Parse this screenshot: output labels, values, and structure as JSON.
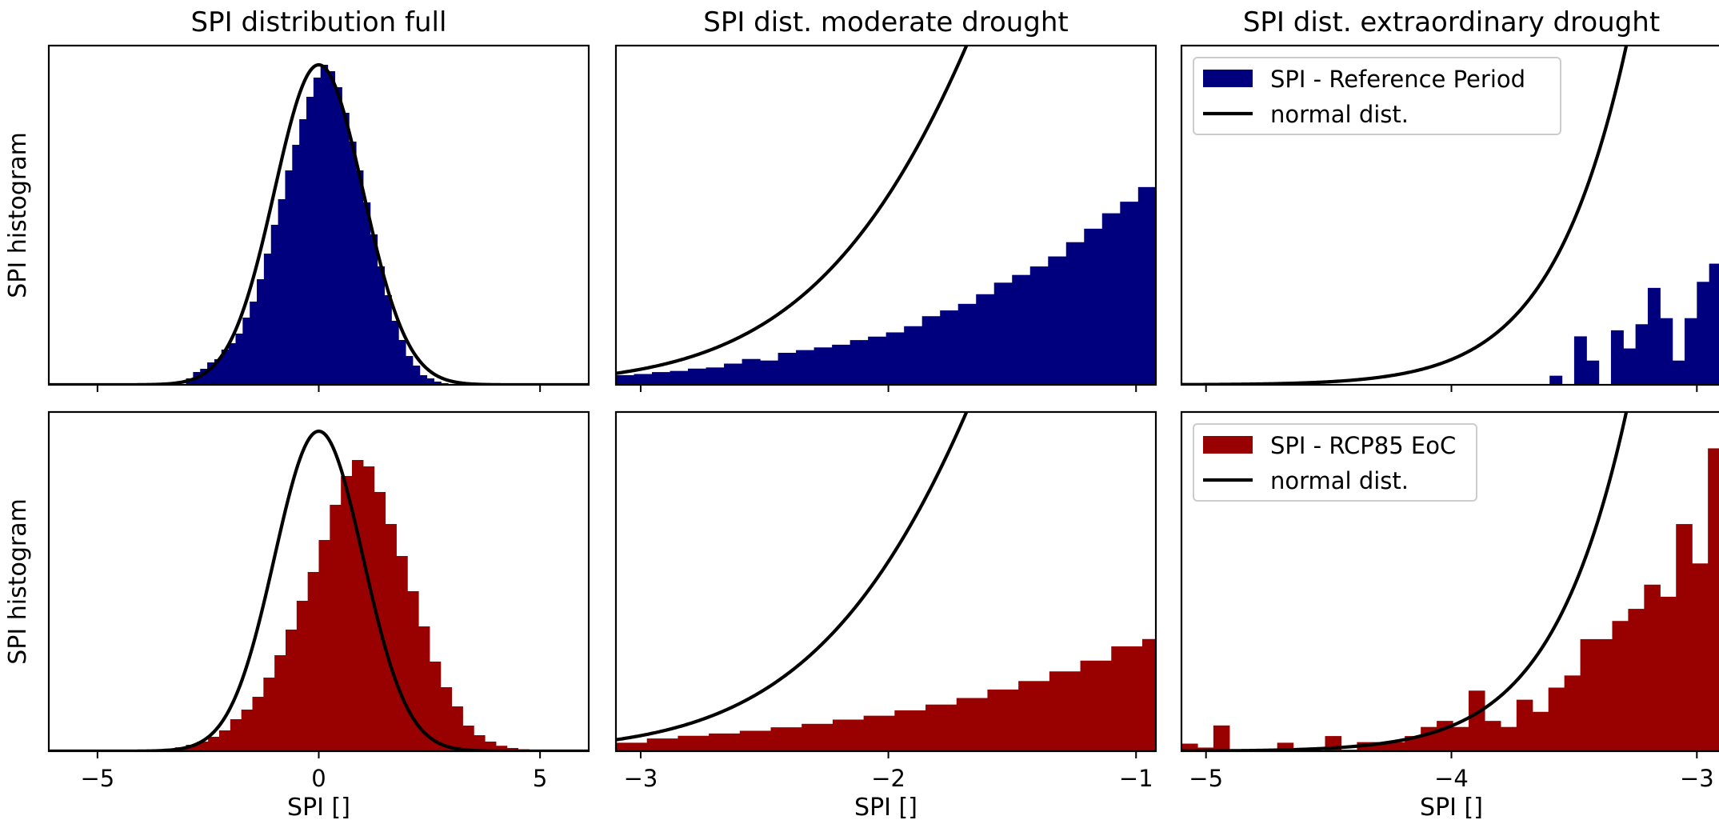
{
  "chart_data": [
    {
      "type": "histogram",
      "panel": "top-left",
      "title": "SPI distribution full",
      "ylabel": "SPI histogram",
      "xlabel": "",
      "xlim": [
        -6.1,
        6.1
      ],
      "xticks": [
        -5,
        0,
        5
      ],
      "xtick_labels": [
        "",
        "",
        ""
      ],
      "color": "#00007f",
      "bins": {
        "start": -3.0,
        "width": 0.16,
        "counts": [
          0.02,
          0.04,
          0.05,
          0.07,
          0.08,
          0.11,
          0.13,
          0.16,
          0.21,
          0.26,
          0.33,
          0.41,
          0.5,
          0.58,
          0.67,
          0.75,
          0.83,
          0.9,
          0.96,
          1.0,
          0.98,
          0.93,
          0.85,
          0.76,
          0.67,
          0.57,
          0.47,
          0.37,
          0.28,
          0.2,
          0.14,
          0.09,
          0.06,
          0.03,
          0.02,
          0.01,
          0.005
        ]
      },
      "curve": {
        "name": "normal dist.",
        "mu": 0,
        "sigma": 1,
        "peak": 1.0
      },
      "ylim": [
        0,
        1.06
      ],
      "legend": null
    },
    {
      "type": "histogram",
      "panel": "top-middle",
      "title": "SPI dist. moderate drought",
      "ylabel": "",
      "xlabel": "",
      "xlim": [
        -3.1,
        -0.92
      ],
      "xticks": [
        -3,
        -2,
        -1
      ],
      "xtick_labels": [
        "",
        "",
        ""
      ],
      "color": "#00007f",
      "bins": {
        "start": -3.1,
        "width": 0.0727,
        "counts": [
          0.025,
          0.028,
          0.033,
          0.036,
          0.042,
          0.045,
          0.055,
          0.067,
          0.063,
          0.083,
          0.09,
          0.097,
          0.104,
          0.116,
          0.125,
          0.136,
          0.152,
          0.178,
          0.193,
          0.21,
          0.235,
          0.265,
          0.285,
          0.307,
          0.333,
          0.37,
          0.405,
          0.445,
          0.475,
          0.513,
          0.545,
          0.585,
          0.65,
          0.655,
          0.73,
          0.735,
          0.76,
          0.88
        ]
      },
      "curve": {
        "name": "normal dist.",
        "mu": 0,
        "sigma": 1,
        "peak": 1.0
      },
      "ylim": [
        0,
        0.242
      ],
      "legend": null
    },
    {
      "type": "histogram",
      "panel": "top-right",
      "title": "SPI dist. extraordinary drought",
      "ylabel": "",
      "xlabel": "",
      "xlim": [
        -5.1,
        -2.9
      ],
      "xticks": [
        -5,
        -4,
        -3
      ],
      "xtick_labels": [
        "",
        "",
        ""
      ],
      "color": "#00007f",
      "bins": {
        "start": -5.1,
        "width": 0.05,
        "counts": [
          0,
          0,
          0,
          0,
          0,
          0,
          0,
          0,
          0,
          0,
          0,
          0,
          0,
          0,
          0,
          0,
          0,
          0,
          0,
          0,
          0,
          0,
          0,
          0,
          0,
          0,
          0,
          0,
          0,
          0,
          0.03,
          0.0,
          0.16,
          0.08,
          0.0,
          0.18,
          0.12,
          0.2,
          0.32,
          0.22,
          0.08,
          0.22,
          0.34,
          0.4,
          0.26,
          0.48,
          0.62,
          0.45,
          1.1,
          0.66,
          0.78,
          0.96
        ]
      },
      "curve": {
        "name": "normal dist.",
        "mu": 0,
        "sigma": 1,
        "peak": 1.0
      },
      "ylim": [
        0,
        0.0045
      ],
      "legend": {
        "entries": [
          "SPI - Reference Period",
          "normal dist."
        ]
      }
    },
    {
      "type": "histogram",
      "panel": "bottom-left",
      "title": "",
      "ylabel": "SPI histogram",
      "xlabel": "SPI []",
      "xlim": [
        -6.1,
        6.1
      ],
      "xticks": [
        -5,
        0,
        5
      ],
      "xtick_labels": [
        "−5",
        "0",
        "5"
      ],
      "color": "#990000",
      "bins": {
        "start": -4.0,
        "width": 0.25,
        "counts": [
          0.003,
          0.005,
          0.008,
          0.012,
          0.02,
          0.03,
          0.045,
          0.065,
          0.1,
          0.13,
          0.17,
          0.23,
          0.3,
          0.38,
          0.47,
          0.56,
          0.66,
          0.77,
          0.86,
          0.91,
          0.89,
          0.81,
          0.71,
          0.61,
          0.5,
          0.39,
          0.28,
          0.2,
          0.14,
          0.08,
          0.05,
          0.03,
          0.017,
          0.01,
          0.006,
          0.003
        ]
      },
      "curve": {
        "name": "normal dist.",
        "mu": 0,
        "sigma": 1,
        "peak": 1.0
      },
      "ylim": [
        0,
        1.06
      ],
      "legend": null
    },
    {
      "type": "histogram",
      "panel": "bottom-middle",
      "title": "",
      "ylabel": "",
      "xlabel": "SPI []",
      "xlim": [
        -3.1,
        -0.92
      ],
      "xticks": [
        -3,
        -2,
        -1
      ],
      "xtick_labels": [
        "−3",
        "−2",
        "−1"
      ],
      "color": "#990000",
      "bins": {
        "start": -3.1,
        "width": 0.125,
        "counts": [
          0.022,
          0.033,
          0.04,
          0.046,
          0.053,
          0.062,
          0.071,
          0.082,
          0.092,
          0.106,
          0.121,
          0.138,
          0.16,
          0.182,
          0.207,
          0.235,
          0.272,
          0.291,
          0.323,
          0.373
        ]
      },
      "curve": {
        "name": "normal dist.",
        "mu": 0,
        "sigma": 1,
        "peak": 1.0
      },
      "ylim": [
        0,
        0.242
      ],
      "legend": {
        "entries": []
      }
    },
    {
      "type": "histogram",
      "panel": "bottom-right",
      "title": "",
      "ylabel": "",
      "xlabel": "SPI []",
      "xlim": [
        -5.1,
        -2.9
      ],
      "xticks": [
        -5,
        -4,
        -3
      ],
      "xtick_labels": [
        "−5",
        "−4",
        "−3"
      ],
      "color": "#990000",
      "bins": {
        "start": -5.1,
        "width": 0.065,
        "counts": [
          0.025,
          0.012,
          0.085,
          0.005,
          0.0,
          0.0,
          0.028,
          0.01,
          0.003,
          0.05,
          0.005,
          0.03,
          0.03,
          0.03,
          0.05,
          0.08,
          0.1,
          0.08,
          0.2,
          0.1,
          0.08,
          0.17,
          0.13,
          0.21,
          0.25,
          0.37,
          0.37,
          0.43,
          0.47,
          0.55,
          0.51,
          0.75,
          0.62,
          1.0
        ]
      },
      "curve": {
        "name": "normal dist.",
        "mu": 0,
        "sigma": 1,
        "peak": 1.0
      },
      "ylim": [
        0,
        0.0045
      ],
      "legend": {
        "entries": [
          "SPI - RCP85 EoC",
          "normal dist."
        ]
      }
    }
  ],
  "legend_styles": {
    "line_color": "#000000"
  }
}
